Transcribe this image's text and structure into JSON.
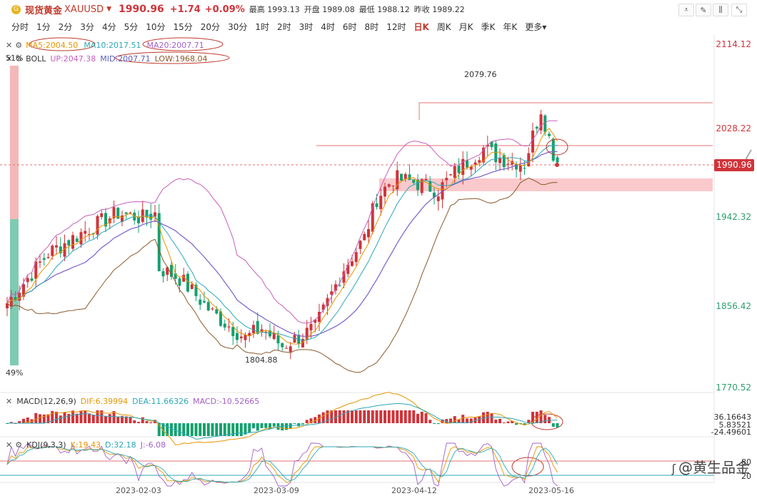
{
  "header": {
    "logo_glyph": "G",
    "name": "现货黄金",
    "code": "XAUUSD",
    "price": "1990.96",
    "change": "+1.74",
    "change_pct": "+0.09%",
    "high_label": "最高",
    "high": "1993.13",
    "open_label": "开盘",
    "open": "1989.08",
    "low_label": "最低",
    "low": "1988.12",
    "prev_label": "昨收",
    "prev": "1989.22"
  },
  "timeframes": [
    "分时",
    "1分",
    "2分",
    "3分",
    "4分",
    "5分",
    "10分",
    "15分",
    "20分",
    "30分",
    "1时",
    "2时",
    "3时",
    "4时",
    "6时",
    "8时",
    "12时",
    "日K",
    "周K",
    "月K",
    "季K",
    "年K",
    "更多"
  ],
  "active_timeframe": "日K",
  "legend_ma": {
    "ma5": "MA5:2004.50",
    "ma10": "MA10:2017.51",
    "ma20": "MA20:2007.71"
  },
  "legend_boll": {
    "name": "BOLL",
    "up": "UP:2047.38",
    "mid": "MID:2007.71",
    "low": "LOW:1968.04"
  },
  "price_axis": [
    "2114.12",
    "2028.22",
    "1942.32",
    "1856.42",
    "1770.52"
  ],
  "current_price_tag": "1990.96",
  "annotations": {
    "high_label": "2079.76",
    "low_label": "1804.88",
    "top_pct": "51%",
    "bottom_pct": "49%"
  },
  "dates": [
    "2023-02-03",
    "2023-03-09",
    "2023-04-12",
    "2023-05-16"
  ],
  "macd": {
    "name": "MACD(12,26,9)",
    "dif": "DIF:6.39994",
    "dea": "DEA:11.66326",
    "macd": "MACD:-10.52665",
    "axis": [
      "36.16643",
      "5.83521",
      "-24.49601"
    ]
  },
  "kdj": {
    "name": "KDJ(9,3,3)",
    "k": "K:19.43",
    "d": "D:32.18",
    "j": "J:-6.08",
    "axis": [
      "80",
      "20"
    ]
  },
  "watermark": "@黄生品金",
  "colors": {
    "up": "#d0343a",
    "down": "#15a06e",
    "ma5": "#e69500",
    "ma10": "#2aa8b8",
    "ma20": "#7a5fc7",
    "boll_up": "#c65fbd",
    "boll_low": "#8b5a2b"
  },
  "chart_data": {
    "type": "candlestick",
    "y_axis_ticks": [
      2114.12,
      2028.22,
      1942.32,
      1856.42,
      1770.52
    ],
    "marked_high": 2079.76,
    "marked_low": 1804.88,
    "last_price": 1990.96
  }
}
